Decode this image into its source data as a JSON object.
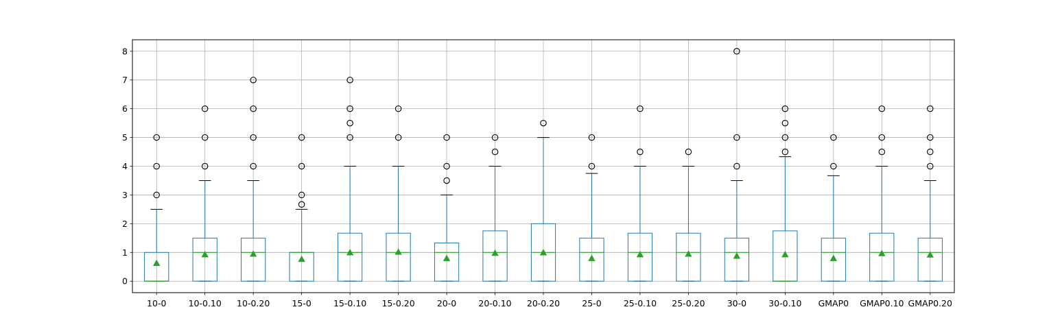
{
  "chart_data": {
    "type": "box",
    "title": "",
    "xlabel": "",
    "ylabel": "",
    "ylim": [
      -0.4,
      8.4
    ],
    "yticks": [
      0,
      1,
      2,
      3,
      4,
      5,
      6,
      7,
      8
    ],
    "grid": true,
    "colors": {
      "box": "#1f77b4",
      "median": "#2ca02c",
      "mean": "#2ca02c",
      "whisker_cap": "#000000",
      "flier": "#000000",
      "grid": "#b0b0b0"
    },
    "categories": [
      "10-0",
      "10-0.10",
      "10-0.20",
      "15-0",
      "15-0.10",
      "15-0.20",
      "20-0",
      "20-0.10",
      "20-0.20",
      "25-0",
      "25-0.10",
      "25-0.20",
      "30-0",
      "30-0.10",
      "GMAP0",
      "GMAP0.10",
      "GMAP0.20"
    ],
    "boxes": [
      {
        "label": "10-0",
        "q1": 0,
        "median": 0,
        "q3": 1,
        "whislo": 0,
        "whishi": 2.5,
        "mean": 0.63,
        "fliers": [
          3,
          4,
          5
        ]
      },
      {
        "label": "10-0.10",
        "q1": 0,
        "median": 1,
        "q3": 1.5,
        "whislo": 0,
        "whishi": 3.5,
        "mean": 0.93,
        "fliers": [
          4,
          5,
          6
        ]
      },
      {
        "label": "10-0.20",
        "q1": 0,
        "median": 1,
        "q3": 1.5,
        "whislo": 0,
        "whishi": 3.5,
        "mean": 0.95,
        "fliers": [
          4,
          5,
          6,
          7
        ]
      },
      {
        "label": "15-0",
        "q1": 0,
        "median": 1,
        "q3": 1,
        "whislo": 0,
        "whishi": 2.5,
        "mean": 0.77,
        "fliers": [
          2.67,
          3,
          4,
          5
        ]
      },
      {
        "label": "15-0.10",
        "q1": 0,
        "median": 1,
        "q3": 1.67,
        "whislo": 0,
        "whishi": 4,
        "mean": 1.0,
        "fliers": [
          5,
          5.5,
          6,
          7
        ]
      },
      {
        "label": "15-0.20",
        "q1": 0,
        "median": 1,
        "q3": 1.67,
        "whislo": 0,
        "whishi": 4,
        "mean": 1.02,
        "fliers": [
          5,
          6
        ]
      },
      {
        "label": "20-0",
        "q1": 0,
        "median": 1,
        "q3": 1.33,
        "whislo": 0,
        "whishi": 3,
        "mean": 0.8,
        "fliers": [
          3.5,
          4,
          5
        ]
      },
      {
        "label": "20-0.10",
        "q1": 0,
        "median": 1,
        "q3": 1.75,
        "whislo": 0,
        "whishi": 4,
        "mean": 0.98,
        "fliers": [
          4.5,
          5
        ]
      },
      {
        "label": "20-0.20",
        "q1": 0,
        "median": 1,
        "q3": 2,
        "whislo": 0,
        "whishi": 5,
        "mean": 1.0,
        "fliers": [
          5.5
        ]
      },
      {
        "label": "25-0",
        "q1": 0,
        "median": 1,
        "q3": 1.5,
        "whislo": 0,
        "whishi": 3.75,
        "mean": 0.8,
        "fliers": [
          4,
          5
        ]
      },
      {
        "label": "25-0.10",
        "q1": 0,
        "median": 1,
        "q3": 1.67,
        "whislo": 0,
        "whishi": 4,
        "mean": 0.93,
        "fliers": [
          4.5,
          6
        ]
      },
      {
        "label": "25-0.20",
        "q1": 0,
        "median": 1,
        "q3": 1.67,
        "whislo": 0,
        "whishi": 4,
        "mean": 0.95,
        "fliers": [
          4.5
        ]
      },
      {
        "label": "30-0",
        "q1": 0,
        "median": 1,
        "q3": 1.5,
        "whislo": 0,
        "whishi": 3.5,
        "mean": 0.88,
        "fliers": [
          4,
          5,
          8
        ]
      },
      {
        "label": "30-0.10",
        "q1": 0,
        "median": 0,
        "q3": 1.75,
        "whislo": 0,
        "whishi": 4.33,
        "mean": 0.93,
        "fliers": [
          4.5,
          5,
          5.5,
          6
        ]
      },
      {
        "label": "GMAP0",
        "q1": 0,
        "median": 1,
        "q3": 1.5,
        "whislo": 0,
        "whishi": 3.67,
        "mean": 0.8,
        "fliers": [
          4,
          5
        ]
      },
      {
        "label": "GMAP0.10",
        "q1": 0,
        "median": 1,
        "q3": 1.67,
        "whislo": 0,
        "whishi": 4,
        "mean": 0.97,
        "fliers": [
          4.5,
          5,
          6
        ]
      },
      {
        "label": "GMAP0.20",
        "q1": 0,
        "median": 1,
        "q3": 1.5,
        "whislo": 0,
        "whishi": 3.5,
        "mean": 0.92,
        "fliers": [
          4,
          4.5,
          5,
          6
        ]
      }
    ]
  }
}
